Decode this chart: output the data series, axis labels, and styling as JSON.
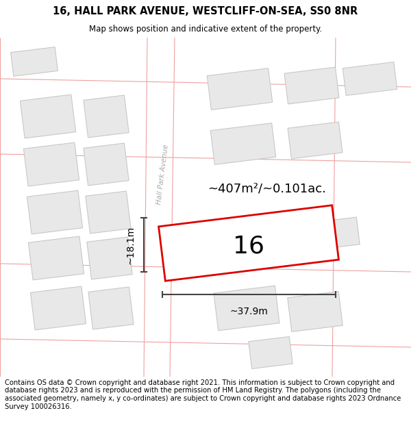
{
  "title_line1": "16, HALL PARK AVENUE, WESTCLIFF-ON-SEA, SS0 8NR",
  "title_line2": "Map shows position and indicative extent of the property.",
  "footer_text": "Contains OS data © Crown copyright and database right 2021. This information is subject to Crown copyright and database rights 2023 and is reproduced with the permission of HM Land Registry. The polygons (including the associated geometry, namely x, y co-ordinates) are subject to Crown copyright and database rights 2023 Ordnance Survey 100026316.",
  "area_label": "~407m²/~0.101ac.",
  "plot_number": "16",
  "dim_width": "~37.9m",
  "dim_height": "~18.1m",
  "street_label": "Hall Park Avenue",
  "bg_color": "#ffffff",
  "map_bg": "#ffffff",
  "plot_fill": "#ffffff",
  "plot_edge": "#dd0000",
  "neighbor_fill": "#e8e8e8",
  "neighbor_edge": "#c8c8c8",
  "road_line_color": "#f0a0a0",
  "title_fontsize": 10.5,
  "footer_fontsize": 7.2,
  "road_lw": 0.8,
  "neighbor_lw": 0.8,
  "plot_lw": 2.0
}
